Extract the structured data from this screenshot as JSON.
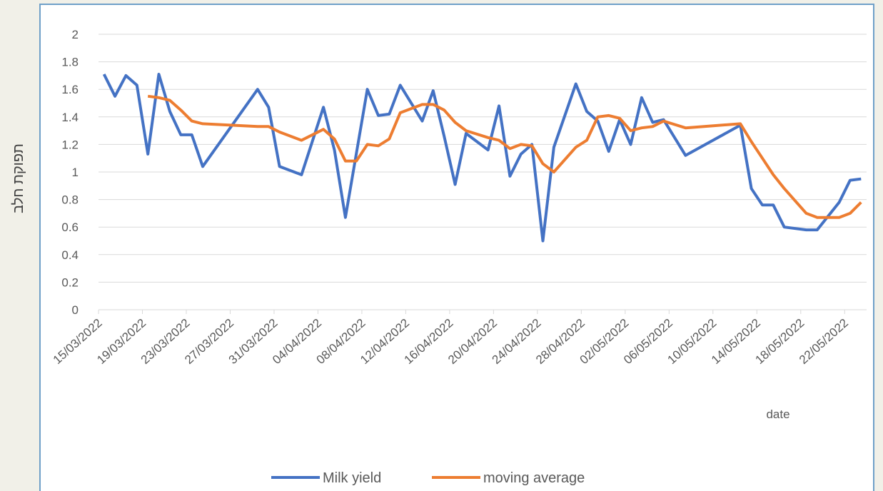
{
  "chart_data": {
    "type": "line",
    "xlabel": "date",
    "ylabel": "תפוקת חלב",
    "ylim": [
      0,
      2
    ],
    "yticks": [
      0,
      0.2,
      0.4,
      0.6,
      0.8,
      1,
      1.2,
      1.4,
      1.6,
      1.8,
      2
    ],
    "grid": true,
    "legend": "bottom",
    "xlim": [
      "15/03/2022",
      "24/05/2022"
    ],
    "xticks": [
      "15/03/2022",
      "19/03/2022",
      "23/03/2022",
      "27/03/2022",
      "31/03/2022",
      "04/04/2022",
      "08/04/2022",
      "12/04/2022",
      "16/04/2022",
      "20/04/2022",
      "24/04/2022",
      "28/04/2022",
      "02/05/2022",
      "06/05/2022",
      "10/05/2022",
      "14/05/2022",
      "18/05/2022",
      "22/05/2022"
    ],
    "series": [
      {
        "name": "Milk yield",
        "color": "#4472c4",
        "x": [
          "15/03/2022",
          "16/03/2022",
          "17/03/2022",
          "18/03/2022",
          "19/03/2022",
          "20/03/2022",
          "21/03/2022",
          "22/03/2022",
          "23/03/2022",
          "24/03/2022",
          "29/03/2022",
          "30/03/2022",
          "31/03/2022",
          "02/04/2022",
          "04/04/2022",
          "05/04/2022",
          "06/04/2022",
          "08/04/2022",
          "09/04/2022",
          "10/04/2022",
          "11/04/2022",
          "13/04/2022",
          "14/04/2022",
          "15/04/2022",
          "16/04/2022",
          "17/04/2022",
          "19/04/2022",
          "20/04/2022",
          "21/04/2022",
          "22/04/2022",
          "23/04/2022",
          "24/04/2022",
          "25/04/2022",
          "27/04/2022",
          "28/04/2022",
          "29/04/2022",
          "30/04/2022",
          "01/05/2022",
          "02/05/2022",
          "03/05/2022",
          "04/05/2022",
          "05/05/2022",
          "07/05/2022",
          "12/05/2022",
          "13/05/2022",
          "14/05/2022",
          "15/05/2022",
          "16/05/2022",
          "18/05/2022",
          "19/05/2022",
          "21/05/2022",
          "22/05/2022",
          "23/05/2022"
        ],
        "values": [
          1.71,
          1.55,
          1.7,
          1.63,
          1.13,
          1.71,
          1.44,
          1.27,
          1.27,
          1.04,
          1.6,
          1.47,
          1.04,
          0.98,
          1.47,
          1.16,
          0.67,
          1.6,
          1.41,
          1.42,
          1.63,
          1.37,
          1.59,
          1.26,
          0.91,
          1.28,
          1.16,
          1.48,
          0.97,
          1.13,
          1.2,
          0.5,
          1.18,
          1.64,
          1.44,
          1.37,
          1.15,
          1.38,
          1.2,
          1.54,
          1.36,
          1.38,
          1.12,
          1.34,
          0.88,
          0.76,
          0.76,
          0.6,
          0.58,
          0.58,
          0.78,
          0.94,
          0.95
        ]
      },
      {
        "name": "moving average",
        "color": "#ed7d31",
        "x": [
          "19/03/2022",
          "20/03/2022",
          "21/03/2022",
          "22/03/2022",
          "23/03/2022",
          "24/03/2022",
          "29/03/2022",
          "30/03/2022",
          "31/03/2022",
          "02/04/2022",
          "04/04/2022",
          "05/04/2022",
          "06/04/2022",
          "07/04/2022",
          "08/04/2022",
          "09/04/2022",
          "10/04/2022",
          "11/04/2022",
          "13/04/2022",
          "14/04/2022",
          "15/04/2022",
          "16/04/2022",
          "17/04/2022",
          "19/04/2022",
          "20/04/2022",
          "21/04/2022",
          "22/04/2022",
          "23/04/2022",
          "24/04/2022",
          "25/04/2022",
          "27/04/2022",
          "28/04/2022",
          "29/04/2022",
          "30/04/2022",
          "01/05/2022",
          "02/05/2022",
          "03/05/2022",
          "04/05/2022",
          "05/05/2022",
          "07/05/2022",
          "12/05/2022",
          "13/05/2022",
          "14/05/2022",
          "15/05/2022",
          "16/05/2022",
          "18/05/2022",
          "19/05/2022",
          "21/05/2022",
          "22/05/2022",
          "23/05/2022"
        ],
        "values": [
          1.55,
          1.54,
          1.52,
          1.45,
          1.37,
          1.35,
          1.33,
          1.33,
          1.29,
          1.23,
          1.31,
          1.24,
          1.08,
          1.08,
          1.2,
          1.19,
          1.24,
          1.43,
          1.49,
          1.49,
          1.45,
          1.36,
          1.3,
          1.25,
          1.23,
          1.17,
          1.2,
          1.19,
          1.06,
          1.0,
          1.18,
          1.23,
          1.4,
          1.41,
          1.39,
          1.3,
          1.32,
          1.33,
          1.37,
          1.32,
          1.35,
          1.22,
          1.1,
          0.98,
          0.88,
          0.7,
          0.67,
          0.67,
          0.7,
          0.78
        ]
      }
    ]
  }
}
